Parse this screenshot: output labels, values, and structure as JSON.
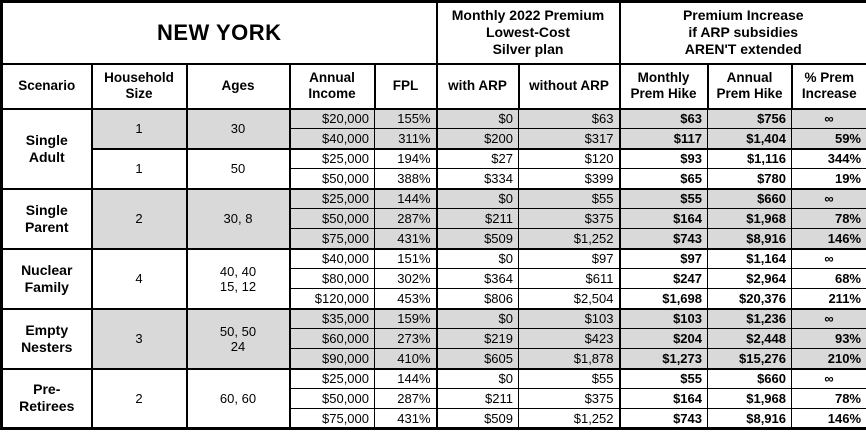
{
  "colors": {
    "shaded_row": "#d9d9d9",
    "border": "#000000",
    "background": "#ffffff",
    "text": "#000000"
  },
  "chart_data": {
    "type": "table",
    "title": "NEW YORK",
    "section_headers": {
      "premium_2022": "Monthly 2022 Premium\nLowest-Cost\nSilver plan",
      "premium_increase": "Premium Increase\nif ARP subsidies\nAREN'T extended"
    },
    "columns": [
      "Scenario",
      "Household\nSize",
      "Ages",
      "Annual\nIncome",
      "FPL",
      "with ARP",
      "without ARP",
      "Monthly\nPrem Hike",
      "Annual\nPrem Hike",
      "% Prem\nIncrease"
    ],
    "value_column_keys": [
      "annual_income",
      "fpl",
      "with_arp",
      "without_arp",
      "monthly_prem_hike",
      "annual_prem_hike",
      "pct_prem_increase"
    ],
    "groups": [
      {
        "scenario": "Single\nAdult",
        "subgroups": [
          {
            "household_size": "1",
            "ages": "30",
            "shaded": true,
            "rows": [
              [
                "$20,000",
                "155%",
                "$0",
                "$63",
                "$63",
                "$756",
                "∞"
              ],
              [
                "$40,000",
                "311%",
                "$200",
                "$317",
                "$117",
                "$1,404",
                "59%"
              ]
            ]
          },
          {
            "household_size": "1",
            "ages": "50",
            "shaded": false,
            "rows": [
              [
                "$25,000",
                "194%",
                "$27",
                "$120",
                "$93",
                "$1,116",
                "344%"
              ],
              [
                "$50,000",
                "388%",
                "$334",
                "$399",
                "$65",
                "$780",
                "19%"
              ]
            ]
          }
        ]
      },
      {
        "scenario": "Single\nParent",
        "subgroups": [
          {
            "household_size": "2",
            "ages": "30, 8",
            "shaded": true,
            "rows": [
              [
                "$25,000",
                "144%",
                "$0",
                "$55",
                "$55",
                "$660",
                "∞"
              ],
              [
                "$50,000",
                "287%",
                "$211",
                "$375",
                "$164",
                "$1,968",
                "78%"
              ],
              [
                "$75,000",
                "431%",
                "$509",
                "$1,252",
                "$743",
                "$8,916",
                "146%"
              ]
            ]
          }
        ]
      },
      {
        "scenario": "Nuclear\nFamily",
        "subgroups": [
          {
            "household_size": "4",
            "ages": "40, 40\n15, 12",
            "shaded": false,
            "rows": [
              [
                "$40,000",
                "151%",
                "$0",
                "$97",
                "$97",
                "$1,164",
                "∞"
              ],
              [
                "$80,000",
                "302%",
                "$364",
                "$611",
                "$247",
                "$2,964",
                "68%"
              ],
              [
                "$120,000",
                "453%",
                "$806",
                "$2,504",
                "$1,698",
                "$20,376",
                "211%"
              ]
            ]
          }
        ]
      },
      {
        "scenario": "Empty\nNesters",
        "subgroups": [
          {
            "household_size": "3",
            "ages": "50, 50\n24",
            "shaded": true,
            "rows": [
              [
                "$35,000",
                "159%",
                "$0",
                "$103",
                "$103",
                "$1,236",
                "∞"
              ],
              [
                "$60,000",
                "273%",
                "$219",
                "$423",
                "$204",
                "$2,448",
                "93%"
              ],
              [
                "$90,000",
                "410%",
                "$605",
                "$1,878",
                "$1,273",
                "$15,276",
                "210%"
              ]
            ]
          }
        ]
      },
      {
        "scenario": "Pre-\nRetirees",
        "subgroups": [
          {
            "household_size": "2",
            "ages": "60, 60",
            "shaded": false,
            "rows": [
              [
                "$25,000",
                "144%",
                "$0",
                "$55",
                "$55",
                "$660",
                "∞"
              ],
              [
                "$50,000",
                "287%",
                "$211",
                "$375",
                "$164",
                "$1,968",
                "78%"
              ],
              [
                "$75,000",
                "431%",
                "$509",
                "$1,252",
                "$743",
                "$8,916",
                "146%"
              ]
            ]
          }
        ]
      }
    ]
  }
}
